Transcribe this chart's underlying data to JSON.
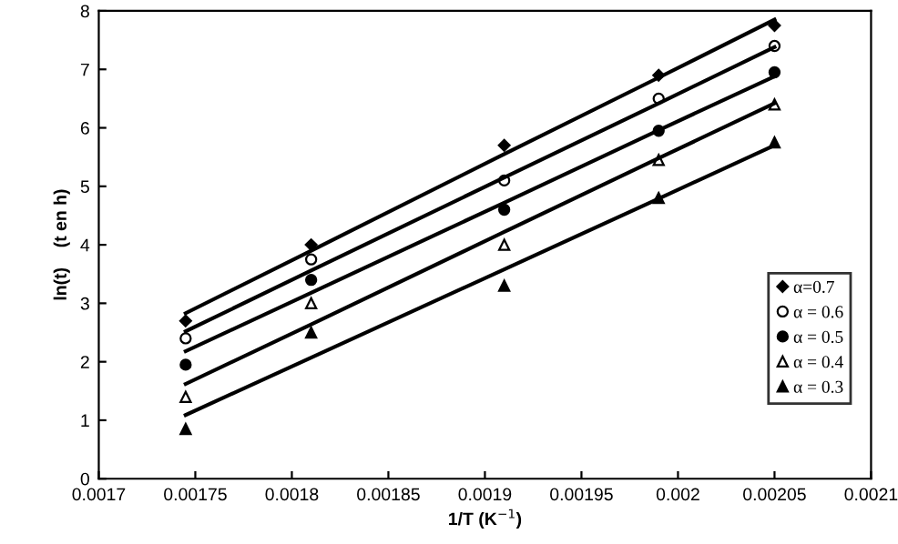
{
  "chart_data": {
    "type": "scatter",
    "xlabel": "1/T (K$^{−1}$)",
    "ylabel": "ln(t)    (t en h)",
    "x": [
      0.001745,
      0.00181,
      0.00191,
      0.00199,
      0.00205
    ],
    "xlim": [
      0.0017,
      0.0021
    ],
    "xticks": [
      {
        "value": 0.0017,
        "label": "0.0017"
      },
      {
        "value": 0.00175,
        "label": "0.00175"
      },
      {
        "value": 0.0018,
        "label": "0.0018"
      },
      {
        "value": 0.00185,
        "label": "0.00185"
      },
      {
        "value": 0.0019,
        "label": "0.0019"
      },
      {
        "value": 0.00195,
        "label": "0.00195"
      },
      {
        "value": 0.002,
        "label": "0.002"
      },
      {
        "value": 0.00205,
        "label": "0.00205"
      },
      {
        "value": 0.0021,
        "label": "0.0021"
      }
    ],
    "ylim": [
      0,
      8
    ],
    "yticks": [
      0,
      1,
      2,
      3,
      4,
      5,
      6,
      7,
      8
    ],
    "grid": false,
    "legend": "right",
    "series": [
      {
        "name": "α=0.7",
        "color": "#000000",
        "marker": "diamond",
        "values": [
          2.7,
          4.0,
          5.7,
          6.9,
          7.75
        ]
      },
      {
        "name": "α = 0.6",
        "color": "#ffffff",
        "marker": "circle",
        "values": [
          2.4,
          3.75,
          5.1,
          6.5,
          7.4
        ]
      },
      {
        "name": "α = 0.5",
        "color": "#000000",
        "marker": "circle",
        "values": [
          1.95,
          3.4,
          4.6,
          5.95,
          6.95
        ]
      },
      {
        "name": "α = 0.4",
        "color": "#ffffff",
        "marker": "triangle",
        "values": [
          1.4,
          3.0,
          4.0,
          5.45,
          6.4
        ]
      },
      {
        "name": "α = 0.3",
        "color": "#000000",
        "marker": "triangle",
        "values": [
          0.85,
          2.5,
          3.3,
          4.8,
          5.75
        ]
      },
      {
        "type": "line",
        "color": "#000000",
        "values": [
          2.83,
          3.9,
          5.55,
          6.86,
          7.85
        ]
      },
      {
        "type": "line",
        "color": "#000000",
        "values": [
          2.52,
          3.56,
          5.15,
          6.42,
          7.38
        ]
      },
      {
        "type": "line",
        "color": "#000000",
        "values": [
          2.18,
          3.18,
          4.72,
          5.96,
          6.88
        ]
      },
      {
        "type": "line",
        "color": "#000000",
        "values": [
          1.62,
          2.64,
          4.22,
          5.48,
          6.42
        ]
      },
      {
        "type": "line",
        "color": "#000000",
        "values": [
          1.09,
          2.07,
          3.58,
          4.79,
          5.7
        ]
      }
    ]
  }
}
